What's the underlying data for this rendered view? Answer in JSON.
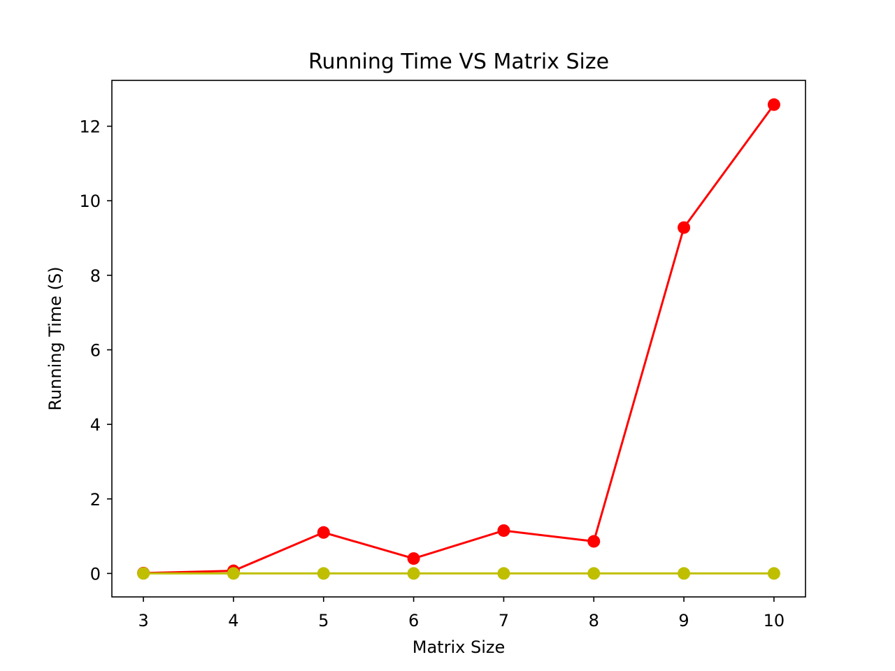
{
  "chart_data": {
    "type": "line",
    "title": "Running Time VS Matrix Size",
    "xlabel": "Matrix Size",
    "ylabel": "Running Time (S)",
    "x": [
      3,
      4,
      5,
      6,
      7,
      8,
      9,
      10
    ],
    "xlim": [
      2.65,
      10.35
    ],
    "ylim": [
      -0.63,
      13.23
    ],
    "xticks": [
      3,
      4,
      5,
      6,
      7,
      8,
      9,
      10
    ],
    "yticks": [
      0,
      2,
      4,
      6,
      8,
      10,
      12
    ],
    "grid": false,
    "series": [
      {
        "color": "#ff0000",
        "values": [
          0.01,
          0.07,
          1.1,
          0.4,
          1.15,
          0.86,
          9.28,
          12.58
        ]
      },
      {
        "color": "#bfbf00",
        "values": [
          0.0,
          0.0,
          0.0,
          0.0,
          0.0,
          0.0,
          0.0,
          0.0
        ]
      }
    ]
  }
}
